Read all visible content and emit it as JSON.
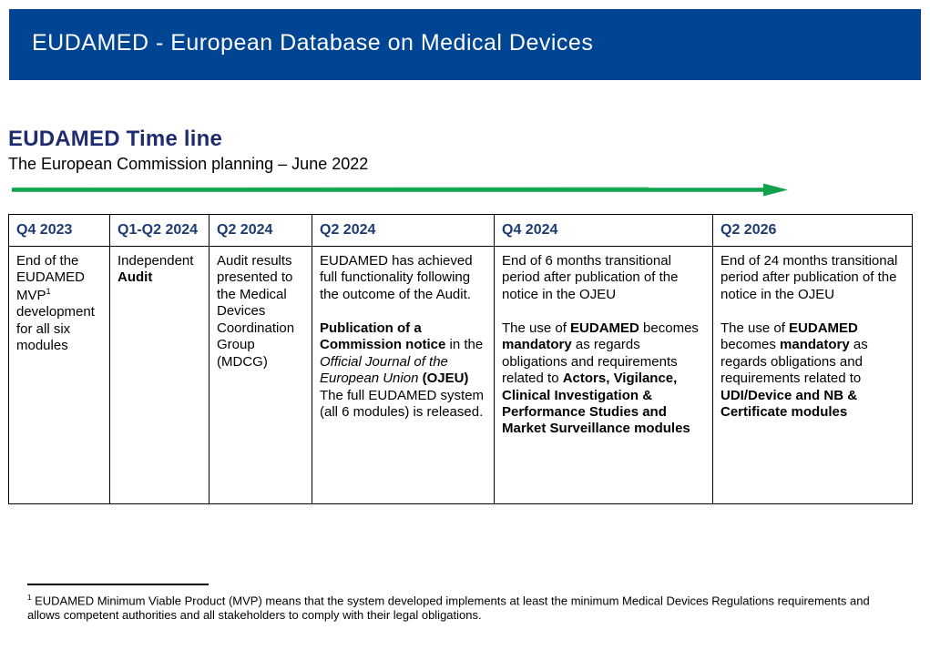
{
  "banner": {
    "title": "EUDAMED - European Database on Medical Devices"
  },
  "page": {
    "title": "EUDAMED Time line",
    "subtitle": "The European Commission planning – June 2022"
  },
  "table": {
    "columns": [
      {
        "header": "Q4 2023",
        "runs": [
          {
            "text": "End of the EUDAMED MVP"
          },
          {
            "text": "1",
            "sup": true
          },
          {
            "text": " development for all six modules"
          }
        ]
      },
      {
        "header": "Q1-Q2 2024",
        "runs": [
          {
            "text": "Independent "
          },
          {
            "text": "Audit",
            "bold": true
          }
        ]
      },
      {
        "header": "Q2 2024",
        "runs": [
          {
            "text": "Audit results presented to the Medical Devices Coordination Group (MDCG)"
          }
        ]
      },
      {
        "header": "Q2 2024",
        "runs": [
          {
            "text": "EUDAMED has achieved full functionality following the outcome of the Audit.\n\n"
          },
          {
            "text": "Publication of a Commission notice",
            "bold": true
          },
          {
            "text": " in the "
          },
          {
            "text": "Official Journal of the European Union",
            "italic": true
          },
          {
            "text": " "
          },
          {
            "text": "(OJEU)",
            "bold": true
          },
          {
            "text": "\nThe full EUDAMED system (all 6 modules) is released."
          }
        ]
      },
      {
        "header": "Q4 2024",
        "runs": [
          {
            "text": "End of 6 months transitional period after publication of the notice in the OJEU\n\n"
          },
          {
            "text": "The use of "
          },
          {
            "text": "EUDAMED",
            "bold": true
          },
          {
            "text": " becomes "
          },
          {
            "text": "mandatory",
            "bold": true
          },
          {
            "text": " as regards obligations and requirements related to "
          },
          {
            "text": "Actors, Vigilance, Clinical Investigation & Performance Studies and Market Surveillance modules",
            "bold": true
          }
        ]
      },
      {
        "header": "Q2 2026",
        "runs": [
          {
            "text": "End of 24 months transitional period after publication of the notice in the OJEU\n\n"
          },
          {
            "text": "The use of "
          },
          {
            "text": "EUDAMED",
            "bold": true
          },
          {
            "text": " becomes "
          },
          {
            "text": "mandatory",
            "bold": true
          },
          {
            "text": " as regards obligations and requirements related to "
          },
          {
            "text": "UDI/Device and NB & Certificate modules",
            "bold": true
          }
        ]
      }
    ]
  },
  "footnote": {
    "runs": [
      {
        "text": "1",
        "sup": true
      },
      {
        "text": " EUDAMED Minimum Viable Product (MVP) means that the system developed implements at least the minimum Medical Devices Regulations requirements and allows competent authorities and all stakeholders to comply with their legal obligations."
      }
    ]
  },
  "colors": {
    "banner_blue": "#004494",
    "title_navy": "#1F2D70",
    "header_navy": "#1C3B73",
    "arrow_green": "#11A24E",
    "arrow_green_light": "#8FD6AB"
  }
}
